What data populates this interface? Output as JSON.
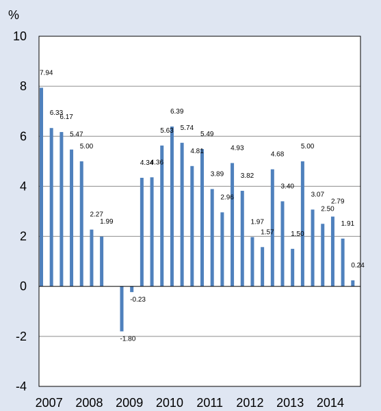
{
  "chart_data": {
    "type": "bar",
    "ylabel": "%",
    "ylim": [
      -4,
      10
    ],
    "yticks": [
      "10",
      "8",
      "6",
      "4",
      "2",
      "0",
      "-2",
      "-4"
    ],
    "year_labels": [
      "2007",
      "2008",
      "2009",
      "2010",
      "2011",
      "2012",
      "2013",
      "2014"
    ],
    "values": [
      7.94,
      6.33,
      6.17,
      5.47,
      5.0,
      2.27,
      1.99,
      0,
      -1.8,
      -0.23,
      4.34,
      4.36,
      5.63,
      6.39,
      5.74,
      4.81,
      5.49,
      3.89,
      2.96,
      4.93,
      3.82,
      1.97,
      1.57,
      4.68,
      3.4,
      1.5,
      5.0,
      3.07,
      2.5,
      2.79,
      1.91,
      0.24
    ],
    "data_labels": [
      "7.94",
      "6.33",
      "6.17",
      "5.47",
      "5.00",
      "2.27",
      "1.99",
      "",
      "-1.80",
      "-0.23",
      "4.34",
      "4.36",
      "5.63",
      "6.39",
      "5.74",
      "4.81",
      "5.49",
      "3.89",
      "2.96",
      "4.93",
      "3.82",
      "1.97",
      "1.57",
      "4.68",
      "3.40",
      "1.50",
      "5.00",
      "3.07",
      "2.50",
      "2.79",
      "1.91",
      "0.24"
    ],
    "bar_color": "#4f81bd",
    "grid": true
  }
}
